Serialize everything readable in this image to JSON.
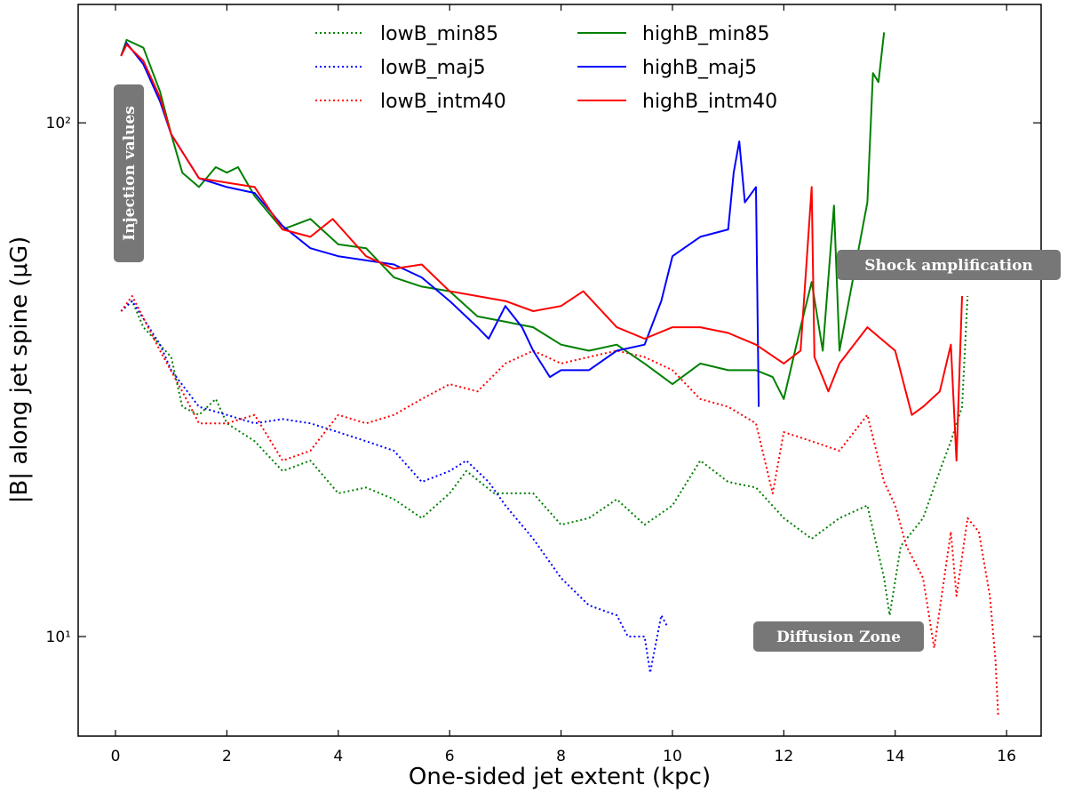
{
  "chart_data": {
    "type": "line",
    "xlabel": "One-sided jet extent (kpc)",
    "ylabel": "|B| along jet spine (μG)",
    "log_y": true,
    "xlim": [
      -0.67,
      16.62
    ],
    "ylim": [
      6.4,
      170
    ],
    "xticks": [
      0,
      2,
      4,
      6,
      8,
      10,
      12,
      14,
      16
    ],
    "yticks": [
      {
        "value": 10,
        "label": "10¹"
      },
      {
        "value": 100,
        "label": "10²"
      }
    ],
    "legend": "upper center",
    "annotations": [
      "Injection values",
      "Shock amplification",
      "Diffusion Zone"
    ],
    "series": [
      {
        "name": "lowB_min85",
        "color": "#008000",
        "linestyle": "dotted",
        "x": [
          0.1,
          0.3,
          0.5,
          1.0,
          1.2,
          1.5,
          1.8,
          2.0,
          2.5,
          3.0,
          3.5,
          4.0,
          4.5,
          5.0,
          5.5,
          6.0,
          6.3,
          6.8,
          7.5,
          8.0,
          8.5,
          9.0,
          9.5,
          10.0,
          10.5,
          11.0,
          11.5,
          12.0,
          12.5,
          13.0,
          13.5,
          13.8,
          13.9,
          14.1,
          14.5,
          14.8,
          15.0,
          15.2,
          15.3
        ],
        "values": [
          43,
          45,
          40,
          35,
          28,
          27,
          29,
          26,
          24,
          21,
          22,
          19,
          19.5,
          18.5,
          17,
          19,
          21,
          19,
          19,
          16.5,
          17,
          18.5,
          16.5,
          18,
          22,
          20,
          19.5,
          17,
          15.5,
          17,
          18,
          13,
          11,
          15,
          17,
          21,
          24,
          28,
          46
        ]
      },
      {
        "name": "lowB_maj5",
        "color": "#0000ff",
        "linestyle": "dotted",
        "x": [
          0.1,
          0.3,
          0.8,
          1.0,
          1.5,
          2.0,
          2.5,
          3.0,
          3.5,
          4.0,
          4.5,
          5.0,
          5.5,
          6.0,
          6.3,
          6.7,
          7.0,
          7.5,
          8.0,
          8.5,
          9.0,
          9.2,
          9.5,
          9.6,
          9.8,
          9.9
        ],
        "values": [
          43,
          45,
          37,
          33,
          28,
          27,
          26,
          26.5,
          26,
          25,
          24,
          23,
          20,
          21,
          22,
          20,
          18,
          15.5,
          13,
          11.5,
          11,
          10,
          10,
          8.5,
          11,
          10.5
        ]
      },
      {
        "name": "lowB_intm40",
        "color": "#ff0000",
        "linestyle": "dotted",
        "x": [
          0.1,
          0.3,
          0.8,
          1.2,
          1.5,
          2.0,
          2.5,
          3.0,
          3.5,
          4.0,
          4.5,
          5.0,
          5.5,
          6.0,
          6.5,
          7.0,
          7.5,
          8.0,
          8.5,
          9.0,
          9.5,
          10.0,
          10.5,
          11.0,
          11.5,
          11.8,
          12.0,
          12.5,
          13.0,
          13.5,
          13.8,
          14.0,
          14.2,
          14.5,
          14.7,
          15.0,
          15.1,
          15.3,
          15.5,
          15.7,
          15.8,
          15.85
        ],
        "values": [
          43,
          46,
          36,
          30,
          26,
          26,
          27,
          22,
          23,
          27,
          26,
          27,
          29,
          31,
          30,
          34,
          36,
          34,
          35,
          36,
          35,
          33,
          29,
          28,
          26,
          19,
          25,
          24,
          23,
          27,
          20,
          18,
          15,
          13,
          9.5,
          16,
          12,
          17,
          16,
          12,
          9,
          7
        ]
      },
      {
        "name": "highB_min85",
        "color": "#008000",
        "linestyle": "solid",
        "x": [
          0.1,
          0.2,
          0.5,
          0.8,
          1.0,
          1.2,
          1.5,
          1.8,
          2.0,
          2.2,
          2.5,
          3.0,
          3.5,
          4.0,
          4.5,
          5.0,
          5.5,
          6.0,
          6.5,
          7.0,
          7.5,
          8.0,
          8.5,
          9.0,
          9.5,
          10.0,
          10.5,
          11.0,
          11.5,
          11.8,
          12.0,
          12.3,
          12.5,
          12.7,
          12.9,
          13.0,
          13.2,
          13.5,
          13.6,
          13.7,
          13.8
        ],
        "values": [
          135,
          145,
          140,
          115,
          95,
          80,
          75,
          82,
          80,
          82,
          72,
          62,
          65,
          58,
          57,
          50,
          48,
          47,
          42,
          41,
          40,
          37,
          36,
          37,
          34,
          31,
          34,
          33,
          33,
          32,
          29,
          40,
          49,
          36,
          69,
          36,
          47,
          70,
          125,
          120,
          150
        ]
      },
      {
        "name": "highB_maj5",
        "color": "#0000ff",
        "linestyle": "solid",
        "x": [
          0.1,
          0.2,
          0.5,
          0.8,
          1.0,
          1.5,
          2.0,
          2.5,
          3.0,
          3.5,
          4.0,
          5.0,
          5.5,
          6.0,
          6.5,
          6.7,
          7.0,
          7.3,
          7.5,
          7.8,
          8.0,
          8.5,
          9.0,
          9.5,
          9.8,
          10.0,
          10.5,
          11.0,
          11.1,
          11.2,
          11.3,
          11.5,
          11.55
        ],
        "values": [
          135,
          143,
          130,
          110,
          95,
          78,
          75,
          73,
          63,
          57,
          55,
          53,
          50,
          45,
          40,
          38,
          44,
          40,
          36,
          32,
          33,
          33,
          36,
          37,
          45,
          55,
          60,
          62,
          80,
          92,
          70,
          75,
          28
        ]
      },
      {
        "name": "highB_intm40",
        "color": "#ff0000",
        "linestyle": "solid",
        "x": [
          0.1,
          0.2,
          0.5,
          0.8,
          1.0,
          1.5,
          2.5,
          3.0,
          3.5,
          3.9,
          4.5,
          5.0,
          5.5,
          6.0,
          7.0,
          7.5,
          8.0,
          8.4,
          9.0,
          9.5,
          10.0,
          10.5,
          11.0,
          11.5,
          12.0,
          12.3,
          12.5,
          12.55,
          12.8,
          13.0,
          13.5,
          14.0,
          14.3,
          14.5,
          14.8,
          15.0,
          15.1,
          15.2
        ],
        "values": [
          135,
          142,
          132,
          112,
          95,
          78,
          75,
          62,
          60,
          65,
          55,
          52,
          53,
          47,
          45,
          43,
          44,
          47,
          40,
          38,
          40,
          40,
          39,
          37,
          34,
          36,
          75,
          35,
          30,
          34,
          40,
          36,
          27,
          28,
          30,
          37,
          22,
          46
        ]
      }
    ]
  }
}
